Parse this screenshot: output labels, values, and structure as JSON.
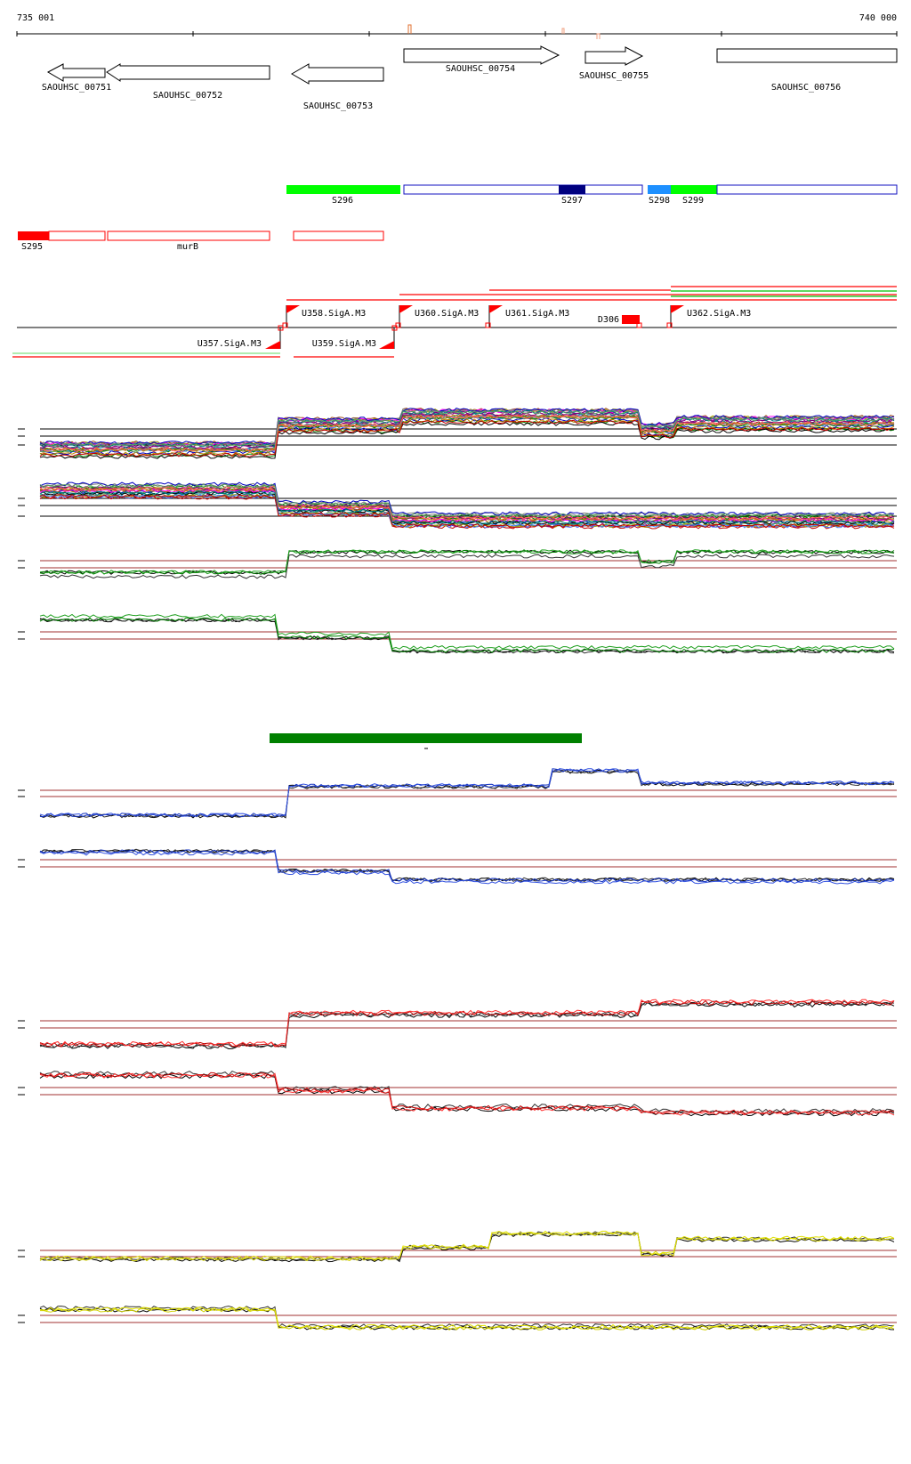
{
  "coords": {
    "start": "735 001",
    "end": "740 000"
  },
  "genes": [
    {
      "label": "SAOUHSC_00751",
      "strand": "-"
    },
    {
      "label": "SAOUHSC_00752",
      "strand": "-"
    },
    {
      "label": "SAOUHSC_00753",
      "strand": "-"
    },
    {
      "label": "SAOUHSC_00754",
      "strand": "+"
    },
    {
      "label": "SAOUHSC_00755",
      "strand": "+"
    },
    {
      "label": "SAOUHSC_00756",
      "strand": "+"
    }
  ],
  "segments_plus": [
    "S296",
    "S297",
    "S298",
    "S299"
  ],
  "segments_minus": [
    "S295",
    "murB"
  ],
  "promoters": [
    "U358.SigA.M3",
    "U360.SigA.M3",
    "U361.SigA.M3",
    "U362.SigA.M3",
    "U357.SigA.M3",
    "U359.SigA.M3"
  ],
  "terminator": "D306",
  "colors": {
    "red": "#ff0000",
    "green": "#00ff00",
    "dark_green": "#008000",
    "navy": "#000080",
    "light_blue": "#1e90ff",
    "blue": "#1030c0",
    "yellow": "#d0d000",
    "threshold": "#a03030"
  }
}
